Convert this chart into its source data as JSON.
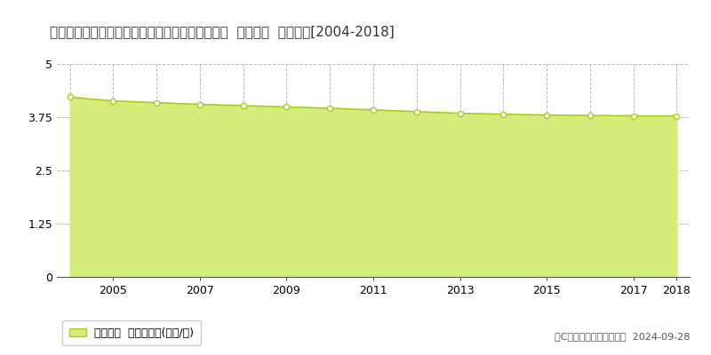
{
  "title": "茨城県那珂郡東海村大字豊岡字西の妻４６０番２  基準地価  地価推移[2004-2018]",
  "years": [
    2004,
    2005,
    2006,
    2007,
    2008,
    2009,
    2010,
    2011,
    2012,
    2013,
    2014,
    2015,
    2016,
    2017,
    2018
  ],
  "values": [
    4.22,
    4.13,
    4.09,
    4.05,
    4.02,
    3.99,
    3.96,
    3.92,
    3.88,
    3.84,
    3.82,
    3.8,
    3.79,
    3.78,
    3.78
  ],
  "line_color": "#aacc22",
  "fill_color": "#d4ed7a",
  "marker_facecolor": "#ffffff",
  "marker_edgecolor": "#aacc22",
  "background_color": "#ffffff",
  "grid_color": "#aaaaaa",
  "ylim": [
    0,
    5
  ],
  "yticks": [
    0,
    1.25,
    2.5,
    3.75,
    5
  ],
  "ytick_labels": [
    "0",
    "1.25",
    "2.5",
    "3.75",
    "5"
  ],
  "xtick_years": [
    2005,
    2007,
    2009,
    2011,
    2013,
    2015,
    2017,
    2018
  ],
  "legend_label": "基準地価  平均坪単価(万円/坪)",
  "copyright_text": "（C）土地価格ドットコム  2024-09-28",
  "title_fontsize": 11,
  "axis_fontsize": 9,
  "legend_fontsize": 9,
  "copyright_fontsize": 8
}
